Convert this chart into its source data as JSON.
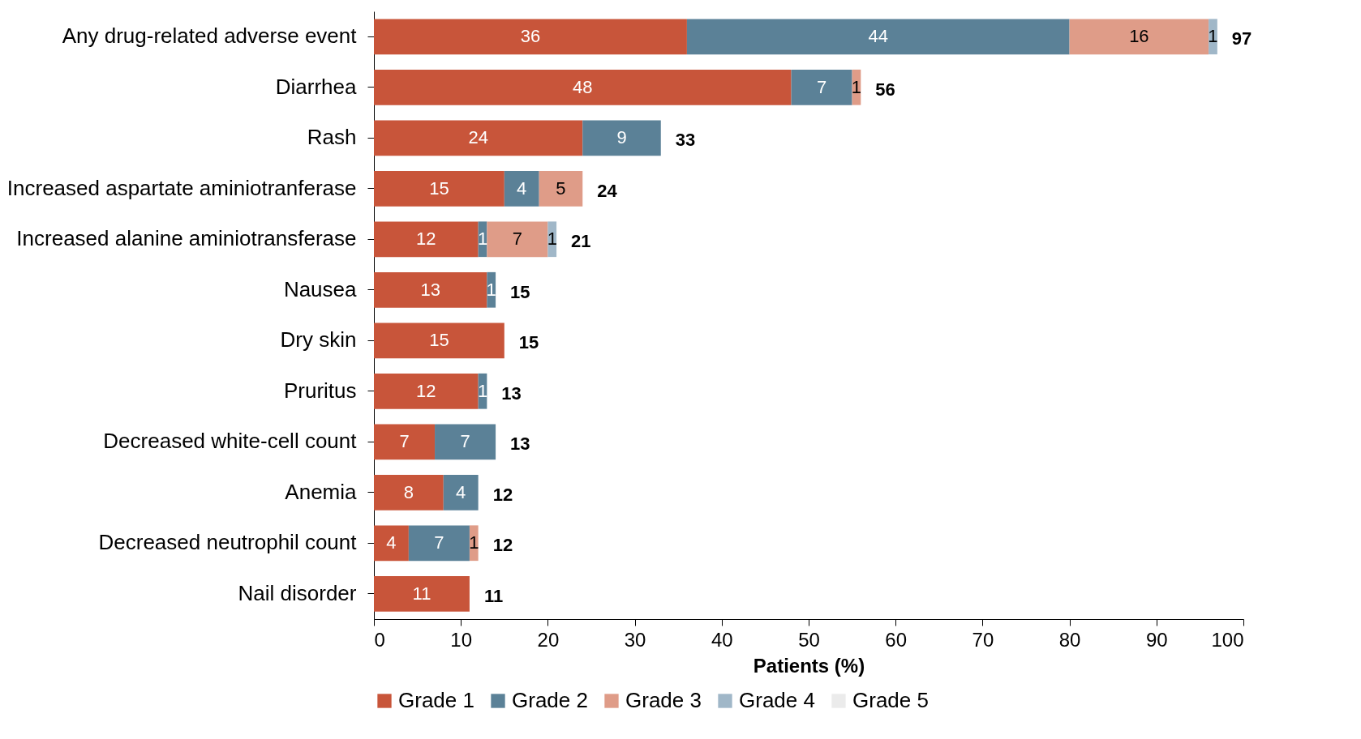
{
  "chart_data": {
    "type": "bar",
    "orientation": "horizontal",
    "stacked": true,
    "xlabel": "Patients (%)",
    "categories": [
      "Any drug-related adverse event",
      "Diarrhea",
      "Rash",
      "Increased aspartate aminiotranferase",
      "Increased alanine aminiotransferase",
      "Nausea",
      "Dry skin",
      "Pruritus",
      "Decreased white-cell count",
      "Anemia",
      "Decreased neutrophil count",
      "Nail disorder"
    ],
    "series": [
      {
        "name": "Grade 1",
        "color": "#c8553a",
        "values": [
          36,
          48,
          24,
          15,
          12,
          13,
          15,
          12,
          7,
          8,
          4,
          11
        ]
      },
      {
        "name": "Grade 2",
        "color": "#5b8197",
        "values": [
          44,
          7,
          9,
          4,
          1,
          1,
          null,
          1,
          7,
          4,
          7,
          null
        ]
      },
      {
        "name": "Grade 3",
        "color": "#df9c88",
        "values": [
          16,
          1,
          null,
          5,
          7,
          null,
          null,
          null,
          null,
          null,
          1,
          null
        ]
      },
      {
        "name": "Grade 4",
        "color": "#a0b7c8",
        "values": [
          1,
          null,
          null,
          null,
          1,
          null,
          null,
          null,
          null,
          null,
          null,
          null
        ]
      },
      {
        "name": "Grade 5",
        "color": "#ebebeb",
        "values": [
          null,
          null,
          null,
          null,
          null,
          null,
          null,
          null,
          null,
          null,
          null,
          null
        ]
      }
    ],
    "totals": [
      "97",
      "56",
      "33",
      "24",
      "21",
      "15",
      "15",
      "13",
      "13",
      "12",
      "12",
      "11"
    ],
    "data_labels": true,
    "xlim": [
      0,
      100
    ],
    "xticks": [
      0,
      10,
      20,
      30,
      40,
      50,
      60,
      70,
      80,
      90,
      100
    ],
    "grid": false,
    "legend": "bottom"
  }
}
